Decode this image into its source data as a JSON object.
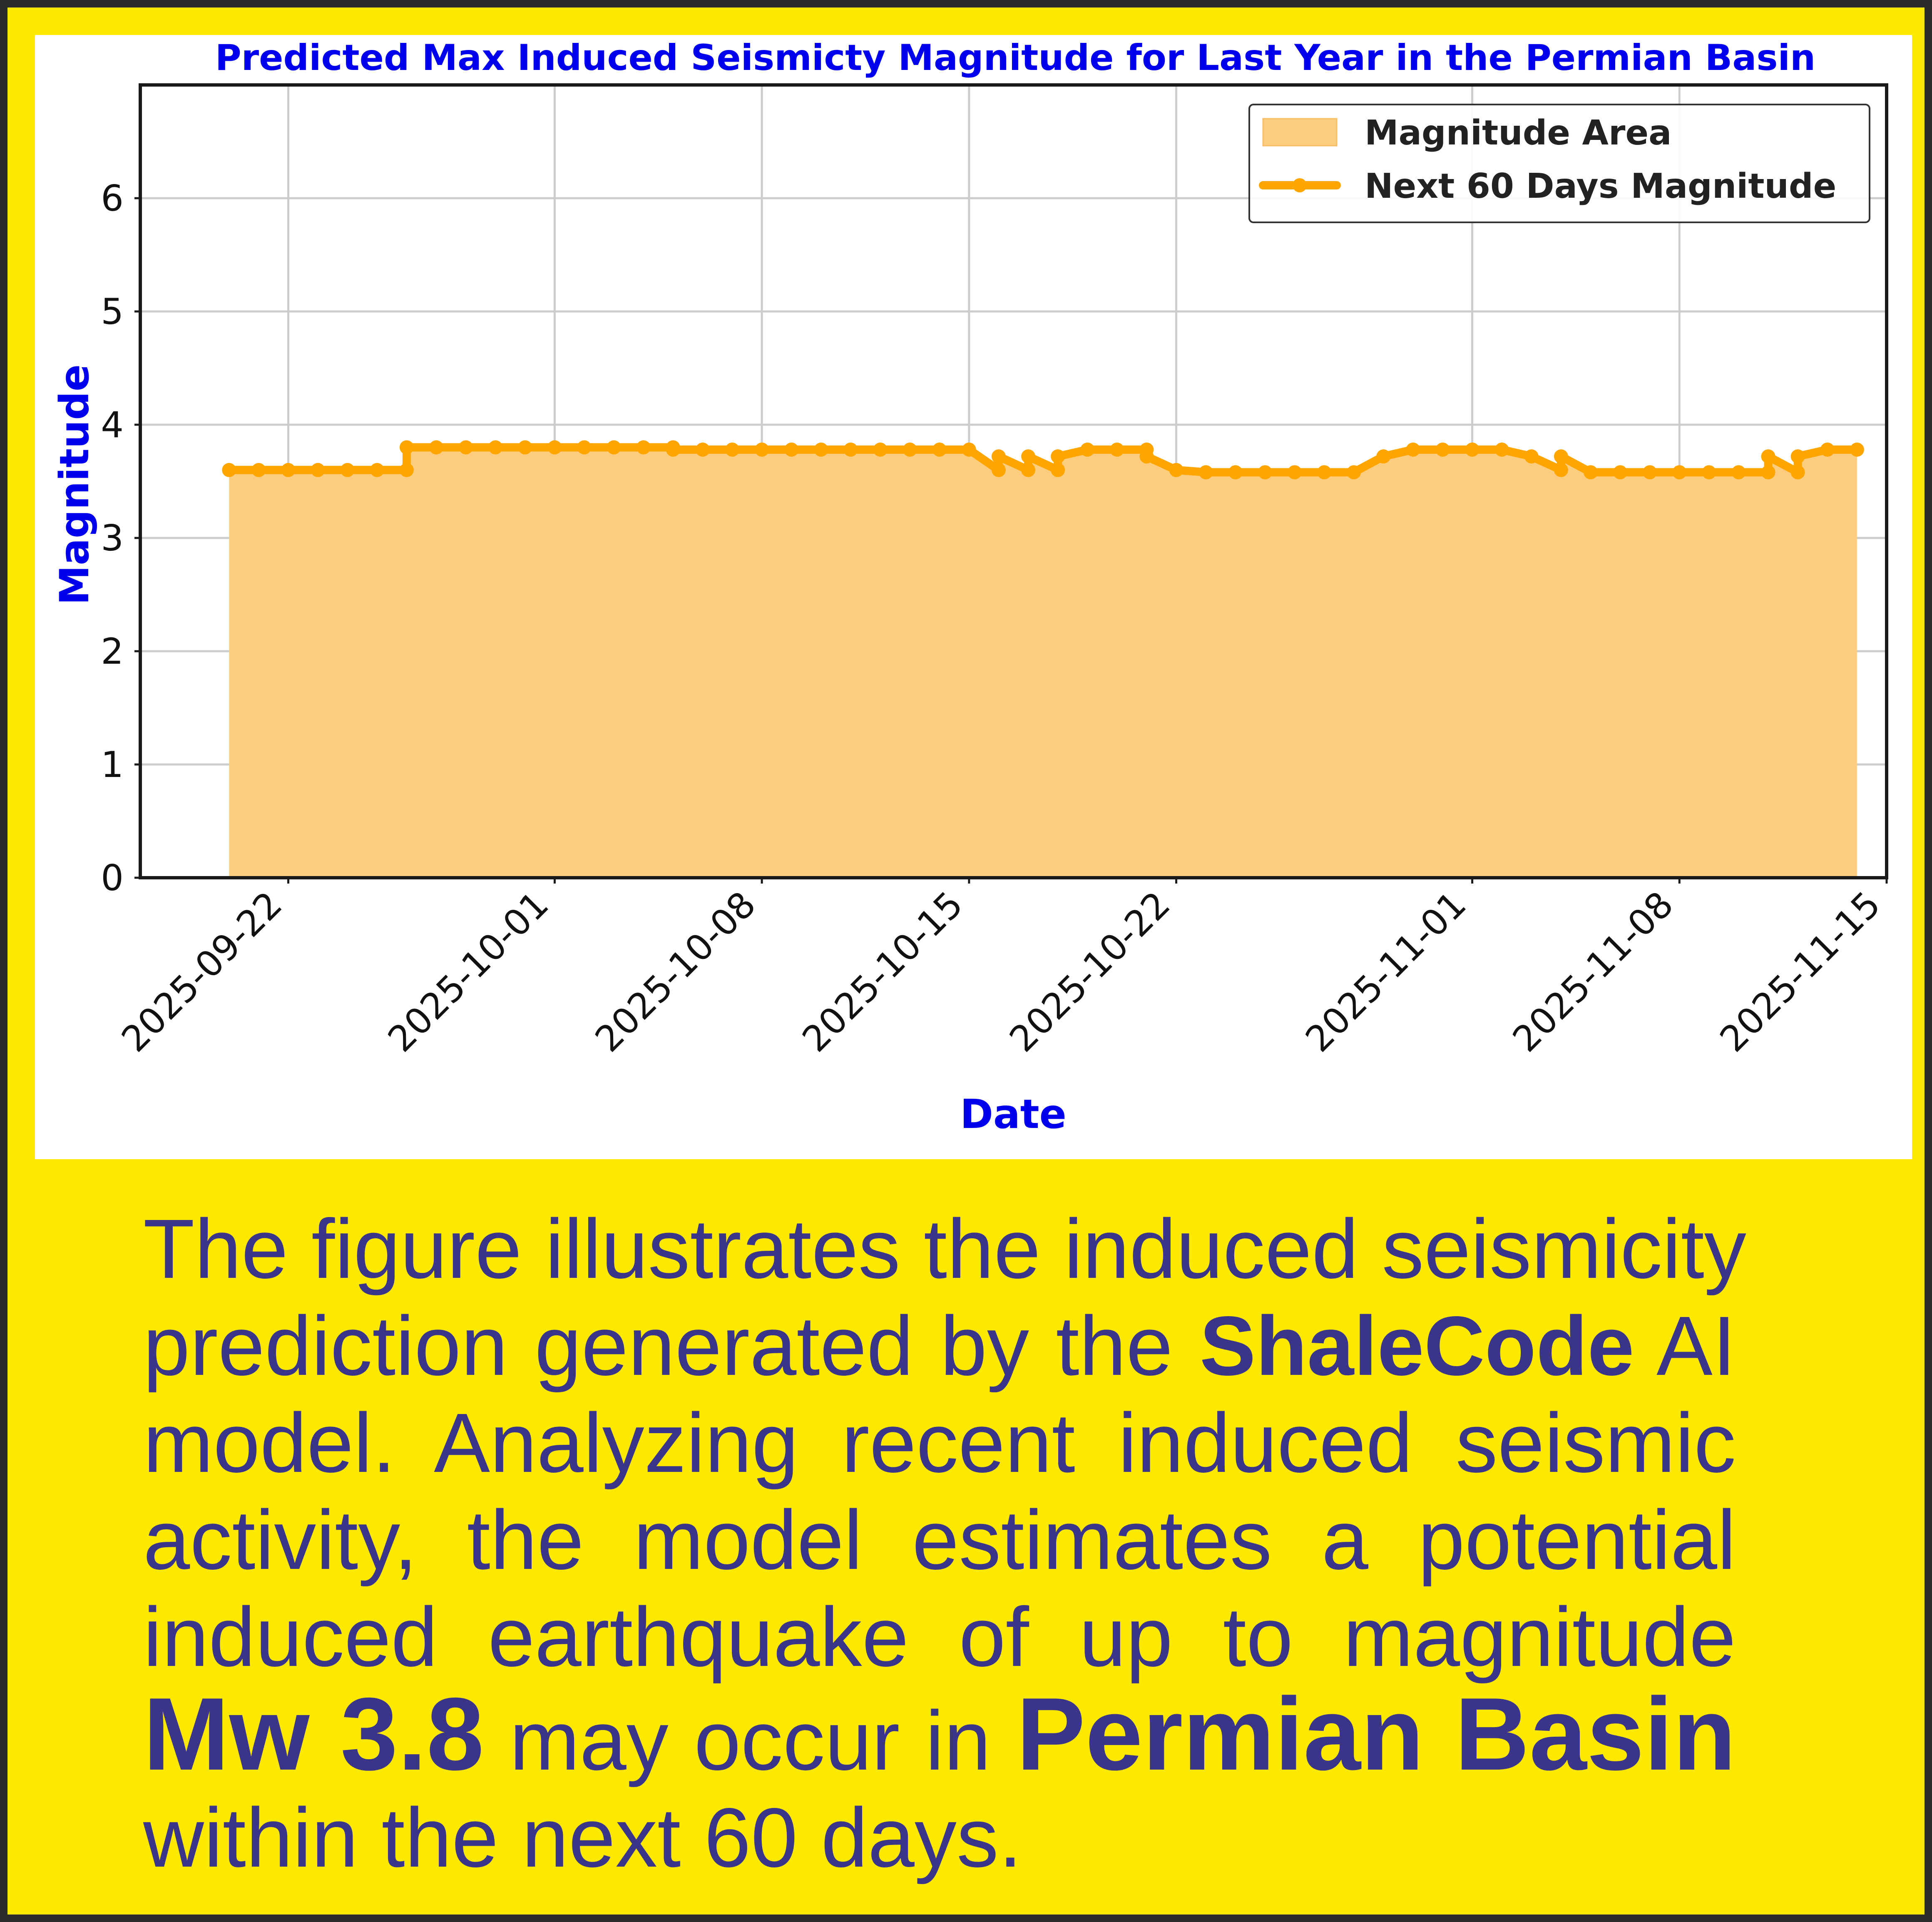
{
  "chart_data": {
    "type": "area",
    "title": "Predicted Max Induced Seismicty Magnitude for Last Year in the Permian Basin",
    "xlabel": "Date",
    "ylabel": "Magnitude",
    "x_tick_labels": [
      "2025-09-22",
      "2025-10-01",
      "2025-10-08",
      "2025-10-15",
      "2025-10-22",
      "2025-11-01",
      "2025-11-08",
      "2025-11-15"
    ],
    "x_ticks": [
      "2025-09-22",
      "2025-10-01",
      "2025-10-08",
      "2025-10-15",
      "2025-10-22",
      "2025-11-01",
      "2025-11-08",
      "2025-11-15"
    ],
    "xlim": [
      "2025-09-17",
      "2025-11-15"
    ],
    "ylim": [
      0,
      7
    ],
    "y_ticks": [
      0,
      1,
      2,
      3,
      4,
      5,
      6
    ],
    "grid": true,
    "legend_position": "top-right",
    "series": [
      {
        "name": "Next 60 Days Magnitude",
        "legend_area": "Magnitude Area",
        "color": "#ffa500",
        "fill_color": "#fdcd7f",
        "points": [
          [
            "2025-09-20",
            3.6
          ],
          [
            "2025-09-21",
            3.6
          ],
          [
            "2025-09-22",
            3.6
          ],
          [
            "2025-09-23",
            3.6
          ],
          [
            "2025-09-24",
            3.6
          ],
          [
            "2025-09-25",
            3.6
          ],
          [
            "2025-09-26",
            3.6
          ],
          [
            "2025-09-26",
            3.8
          ],
          [
            "2025-09-27",
            3.8
          ],
          [
            "2025-09-28",
            3.8
          ],
          [
            "2025-09-29",
            3.8
          ],
          [
            "2025-09-30",
            3.8
          ],
          [
            "2025-10-01",
            3.8
          ],
          [
            "2025-10-02",
            3.8
          ],
          [
            "2025-10-03",
            3.8
          ],
          [
            "2025-10-04",
            3.8
          ],
          [
            "2025-10-05",
            3.8
          ],
          [
            "2025-10-05",
            3.78
          ],
          [
            "2025-10-06",
            3.78
          ],
          [
            "2025-10-07",
            3.78
          ],
          [
            "2025-10-08",
            3.78
          ],
          [
            "2025-10-09",
            3.78
          ],
          [
            "2025-10-10",
            3.78
          ],
          [
            "2025-10-11",
            3.78
          ],
          [
            "2025-10-12",
            3.78
          ],
          [
            "2025-10-13",
            3.78
          ],
          [
            "2025-10-14",
            3.78
          ],
          [
            "2025-10-15",
            3.78
          ],
          [
            "2025-10-16",
            3.6
          ],
          [
            "2025-10-16",
            3.72
          ],
          [
            "2025-10-17",
            3.6
          ],
          [
            "2025-10-17",
            3.72
          ],
          [
            "2025-10-18",
            3.6
          ],
          [
            "2025-10-18",
            3.72
          ],
          [
            "2025-10-19",
            3.78
          ],
          [
            "2025-10-20",
            3.78
          ],
          [
            "2025-10-21",
            3.78
          ],
          [
            "2025-10-21",
            3.72
          ],
          [
            "2025-10-22",
            3.6
          ],
          [
            "2025-10-23",
            3.58
          ],
          [
            "2025-10-24",
            3.58
          ],
          [
            "2025-10-25",
            3.58
          ],
          [
            "2025-10-26",
            3.58
          ],
          [
            "2025-10-27",
            3.58
          ],
          [
            "2025-10-28",
            3.58
          ],
          [
            "2025-10-29",
            3.72
          ],
          [
            "2025-10-30",
            3.78
          ],
          [
            "2025-10-31",
            3.78
          ],
          [
            "2025-11-01",
            3.78
          ],
          [
            "2025-11-02",
            3.78
          ],
          [
            "2025-11-03",
            3.72
          ],
          [
            "2025-11-04",
            3.6
          ],
          [
            "2025-11-04",
            3.72
          ],
          [
            "2025-11-05",
            3.58
          ],
          [
            "2025-11-06",
            3.58
          ],
          [
            "2025-11-07",
            3.58
          ],
          [
            "2025-11-08",
            3.58
          ],
          [
            "2025-11-09",
            3.58
          ],
          [
            "2025-11-10",
            3.58
          ],
          [
            "2025-11-11",
            3.58
          ],
          [
            "2025-11-11",
            3.72
          ],
          [
            "2025-11-12",
            3.58
          ],
          [
            "2025-11-12",
            3.72
          ],
          [
            "2025-11-13",
            3.78
          ],
          [
            "2025-11-14",
            3.78
          ]
        ]
      }
    ]
  },
  "caption": {
    "l1": "The figure illustrates the induced seismicity",
    "l2a": "prediction generated by the ",
    "l2b": "ShaleCode",
    "l2c": " AI",
    "l3": "model. Analyzing recent induced seismic",
    "l4": "activity, the model estimates a  potential",
    "l5": "induced  earthquake of up to magnitude",
    "l6a": "Mw 3.8",
    "l6b": " may  occur in ",
    "l6c": "Permian  Basin",
    "l7": "within  the next 60 days."
  },
  "colors": {
    "page_bg": "#fde900",
    "frame": "#2a2a2a",
    "title_blue": "#0000ee",
    "caption_text": "#3b3589",
    "line": "#ffa500",
    "fill": "#fdcd7f"
  }
}
